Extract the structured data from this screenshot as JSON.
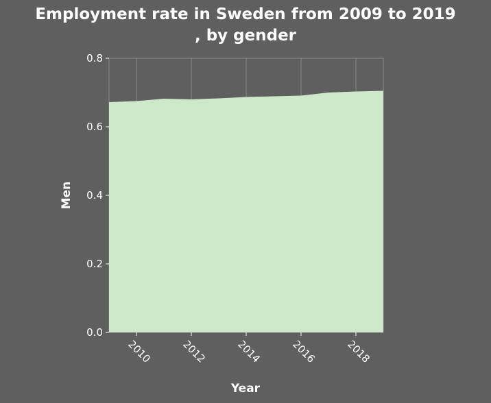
{
  "title_lines": [
    "Employment rate in Sweden from 2009 to 2019",
    ", by gender"
  ],
  "chart_data": {
    "type": "area",
    "title": "Employment rate in Sweden from 2009 to 2019 , by gender",
    "xlabel": "Year",
    "ylabel": "Men",
    "x": [
      2009,
      2010,
      2011,
      2012,
      2013,
      2014,
      2015,
      2016,
      2017,
      2018,
      2019
    ],
    "series": [
      {
        "name": "Men",
        "values": [
          0.672,
          0.675,
          0.682,
          0.68,
          0.683,
          0.687,
          0.689,
          0.691,
          0.7,
          0.703,
          0.705
        ]
      }
    ],
    "xlim": [
      2009,
      2019
    ],
    "ylim": [
      0,
      0.8
    ],
    "x_ticks": [
      2010,
      2012,
      2014,
      2016,
      2018
    ],
    "y_ticks": [
      0.0,
      0.2,
      0.4,
      0.6,
      0.8
    ],
    "y_tick_labels": [
      "0.0",
      "0.2",
      "0.4",
      "0.6",
      "0.8"
    ],
    "grid": true,
    "colors": {
      "background": "#5f5f5f",
      "fill": "#cde9c9",
      "grid": "#8a8a8a",
      "text": "#ffffff"
    }
  }
}
